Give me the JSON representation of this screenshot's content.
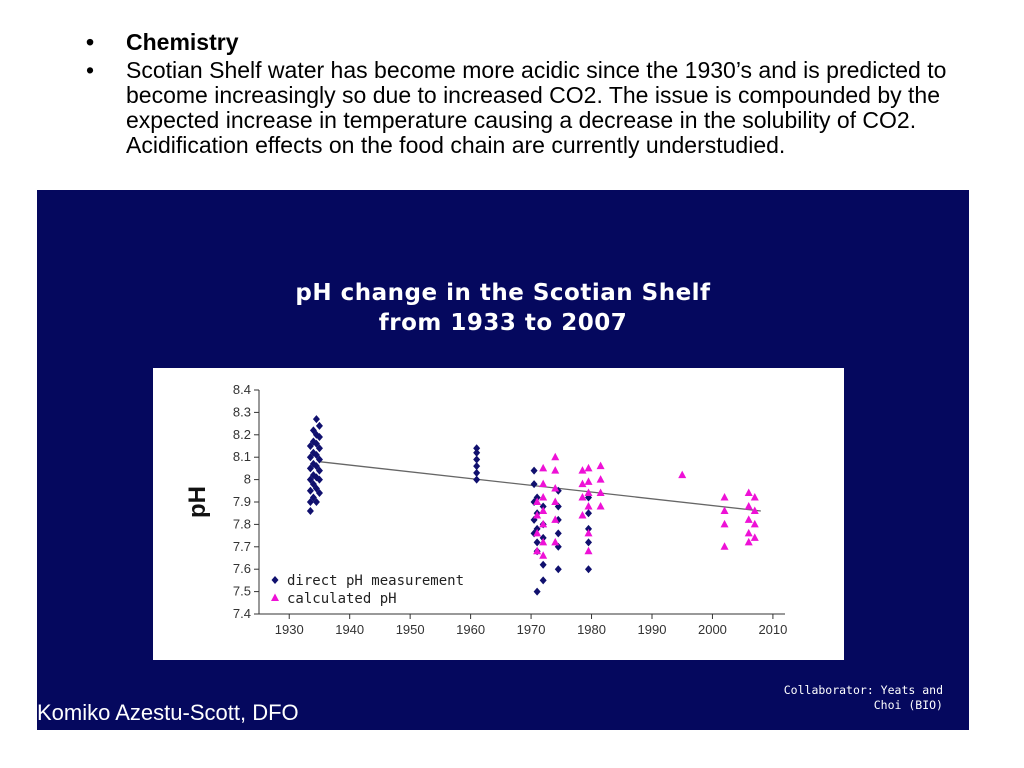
{
  "bullets": [
    {
      "marker": "•",
      "text": "Chemistry"
    },
    {
      "marker": "•",
      "text": "Scotian Shelf water has become more acidic since the 1930’s and is predicted to become increasingly so due to increased CO2. The issue is compounded by the expected increase in temperature causing a decrease in the solubility of CO2. Acidification effects on the food chain are currently understudied."
    }
  ],
  "panel": {
    "title_line1": "pH change in the Scotian Shelf",
    "title_line2": "from 1933 to 2007",
    "collaborator_line1": "Collaborator: Yeats and",
    "collaborator_line2": "Choi (BIO)",
    "credit": "Komiko Azestu-Scott, DFO",
    "background_color": "#05085e"
  },
  "chart_data": {
    "type": "scatter",
    "ylabel": "pH",
    "xlabel": "",
    "xlim": [
      1925,
      2012
    ],
    "ylim": [
      7.4,
      8.4
    ],
    "x_ticks": [
      1930,
      1940,
      1950,
      1960,
      1970,
      1980,
      1990,
      2000,
      2010
    ],
    "y_ticks": [
      7.4,
      7.5,
      7.6,
      7.7,
      7.8,
      7.9,
      8,
      8.1,
      8.2,
      8.3,
      8.4
    ],
    "y_tick_labels": [
      "7.4",
      "7.5",
      "7.6",
      "7.7",
      "7.8",
      "7.9",
      "8",
      "8.1",
      "8.2",
      "8.3",
      "8.4"
    ],
    "legend_position": "bottom-left",
    "series": [
      {
        "name": "direct pH measurement",
        "marker": "diamond",
        "color": "#10106e",
        "points": [
          [
            1933.5,
            7.86
          ],
          [
            1933.5,
            7.9
          ],
          [
            1933.5,
            7.95
          ],
          [
            1933.5,
            8.0
          ],
          [
            1933.5,
            8.05
          ],
          [
            1933.5,
            8.1
          ],
          [
            1933.5,
            8.15
          ],
          [
            1934,
            7.92
          ],
          [
            1934,
            7.98
          ],
          [
            1934,
            8.02
          ],
          [
            1934,
            8.07
          ],
          [
            1934,
            8.12
          ],
          [
            1934,
            8.17
          ],
          [
            1934,
            8.22
          ],
          [
            1934.5,
            7.9
          ],
          [
            1934.5,
            7.96
          ],
          [
            1934.5,
            8.01
          ],
          [
            1934.5,
            8.06
          ],
          [
            1934.5,
            8.11
          ],
          [
            1934.5,
            8.16
          ],
          [
            1934.5,
            8.2
          ],
          [
            1934.5,
            8.27
          ],
          [
            1935,
            7.94
          ],
          [
            1935,
            8.0
          ],
          [
            1935,
            8.04
          ],
          [
            1935,
            8.09
          ],
          [
            1935,
            8.14
          ],
          [
            1935,
            8.19
          ],
          [
            1935,
            8.24
          ],
          [
            1961,
            8.0
          ],
          [
            1961,
            8.03
          ],
          [
            1961,
            8.06
          ],
          [
            1961,
            8.09
          ],
          [
            1961,
            8.12
          ],
          [
            1961,
            8.14
          ],
          [
            1970.5,
            8.04
          ],
          [
            1970.5,
            7.98
          ],
          [
            1970.5,
            7.9
          ],
          [
            1970.5,
            7.82
          ],
          [
            1970.5,
            7.76
          ],
          [
            1971,
            7.92
          ],
          [
            1971,
            7.85
          ],
          [
            1971,
            7.78
          ],
          [
            1971,
            7.72
          ],
          [
            1971,
            7.68
          ],
          [
            1971,
            7.5
          ],
          [
            1972,
            7.88
          ],
          [
            1972,
            7.8
          ],
          [
            1972,
            7.74
          ],
          [
            1972,
            7.62
          ],
          [
            1972,
            7.55
          ],
          [
            1974.5,
            7.95
          ],
          [
            1974.5,
            7.88
          ],
          [
            1974.5,
            7.82
          ],
          [
            1974.5,
            7.76
          ],
          [
            1974.5,
            7.7
          ],
          [
            1974.5,
            7.6
          ],
          [
            1979.5,
            7.92
          ],
          [
            1979.5,
            7.85
          ],
          [
            1979.5,
            7.78
          ],
          [
            1979.5,
            7.72
          ],
          [
            1979.5,
            7.6
          ]
        ]
      },
      {
        "name": "calculated pH",
        "marker": "triangle",
        "color": "#ee11d6",
        "points": [
          [
            1971,
            7.9
          ],
          [
            1971,
            7.84
          ],
          [
            1971,
            7.76
          ],
          [
            1971,
            7.68
          ],
          [
            1972,
            8.05
          ],
          [
            1972,
            7.98
          ],
          [
            1972,
            7.92
          ],
          [
            1972,
            7.86
          ],
          [
            1972,
            7.8
          ],
          [
            1972,
            7.72
          ],
          [
            1972,
            7.66
          ],
          [
            1974,
            8.1
          ],
          [
            1974,
            8.04
          ],
          [
            1974,
            7.96
          ],
          [
            1974,
            7.9
          ],
          [
            1974,
            7.82
          ],
          [
            1974,
            7.72
          ],
          [
            1978.5,
            8.04
          ],
          [
            1978.5,
            7.98
          ],
          [
            1978.5,
            7.92
          ],
          [
            1978.5,
            7.84
          ],
          [
            1979.5,
            8.05
          ],
          [
            1979.5,
            7.99
          ],
          [
            1979.5,
            7.94
          ],
          [
            1979.5,
            7.88
          ],
          [
            1979.5,
            7.76
          ],
          [
            1979.5,
            7.68
          ],
          [
            1981.5,
            8.06
          ],
          [
            1981.5,
            8.0
          ],
          [
            1981.5,
            7.94
          ],
          [
            1981.5,
            7.88
          ],
          [
            1995,
            8.02
          ],
          [
            2002,
            7.92
          ],
          [
            2002,
            7.86
          ],
          [
            2002,
            7.8
          ],
          [
            2002,
            7.7
          ],
          [
            2006,
            7.94
          ],
          [
            2006,
            7.88
          ],
          [
            2006,
            7.82
          ],
          [
            2006,
            7.76
          ],
          [
            2006,
            7.72
          ],
          [
            2007,
            7.92
          ],
          [
            2007,
            7.86
          ],
          [
            2007,
            7.8
          ],
          [
            2007,
            7.74
          ]
        ]
      }
    ],
    "trend_line": {
      "x": [
        1935,
        2008
      ],
      "y": [
        8.08,
        7.86
      ],
      "color": "#666666"
    }
  }
}
